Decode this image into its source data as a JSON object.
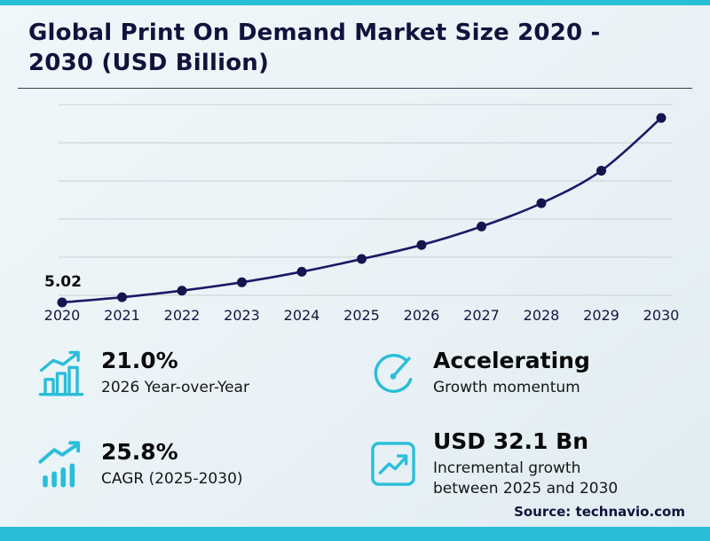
{
  "header": {
    "title": "Global Print On Demand Market Size 2020 - 2030 (USD Billion)",
    "title_line1": "Global Print On Demand Market Size 2020 -",
    "title_line2": "2030 (USD Billion)"
  },
  "chart_data": {
    "type": "line",
    "title": "Global Print On Demand Market Size 2020 - 2030 (USD Billion)",
    "categories": [
      "2020",
      "2021",
      "2022",
      "2023",
      "2024",
      "2025",
      "2026",
      "2027",
      "2028",
      "2029",
      "2030"
    ],
    "values": [
      5.02,
      6.2,
      7.7,
      9.6,
      12.0,
      14.9,
      18.1,
      22.3,
      27.6,
      35.0,
      47.0
    ],
    "first_point_label": "5.02",
    "xlabel": "",
    "ylabel": "",
    "ylim": [
      0,
      52
    ],
    "grid": "horizontal",
    "legend": "none",
    "line_color": "#1a1a66",
    "marker_color": "#14144f",
    "gridline_color": "#c9ced3",
    "marker": "circle"
  },
  "stats": [
    {
      "icon": "bar-chart-growth-icon",
      "value": "21.0%",
      "label": "2026 Year-over-Year"
    },
    {
      "icon": "speedometer-icon",
      "value": "Accelerating",
      "label": "Growth momentum"
    },
    {
      "icon": "trend-up-bars-icon",
      "value": "25.8%",
      "label": "CAGR (2025-2030)"
    },
    {
      "icon": "chart-upward-square-icon",
      "value": "USD 32.1 Bn",
      "label": "Incremental growth between 2025 and 2030"
    }
  ],
  "footer": {
    "source": "Source: technavio.com"
  },
  "colors": {
    "accent": "#29bed8",
    "title": "#12123d",
    "line": "#1a1a66"
  }
}
